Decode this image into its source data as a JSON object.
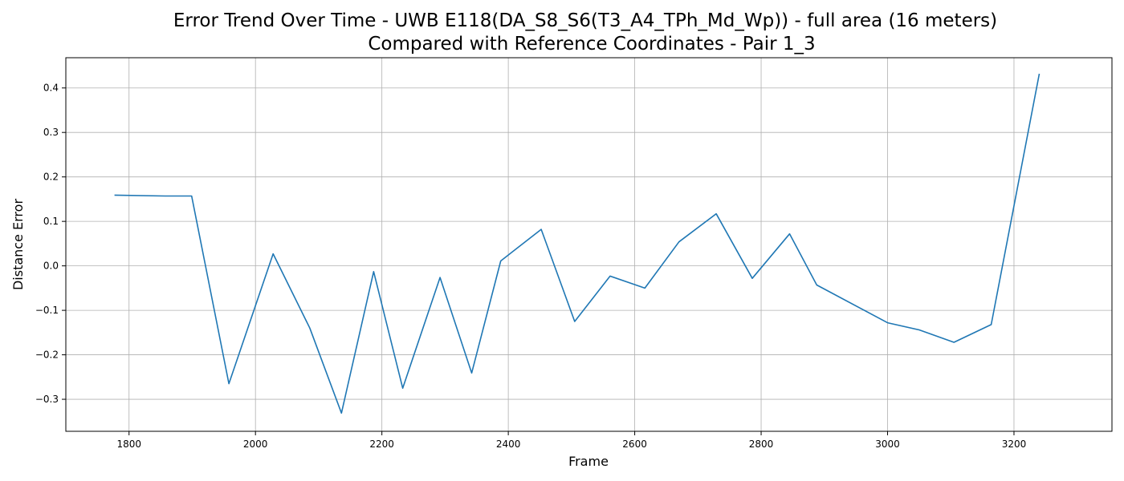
{
  "chart_data": {
    "type": "line",
    "title_line1": "Error Trend Over Time - UWB E118(DA_S8_S6(T3_A4_TPh_Md_Wp)) - full area (16 meters)",
    "title_line2": "Compared with Reference Coordinates - Pair 1_3",
    "xlabel": "Frame",
    "ylabel": "Distance Error",
    "xlim": [
      1700,
      3355
    ],
    "ylim": [
      -0.372,
      0.468
    ],
    "xticks": [
      1800,
      2000,
      2200,
      2400,
      2600,
      2800,
      3000,
      3200
    ],
    "yticks": [
      -0.3,
      -0.2,
      -0.1,
      0.0,
      0.1,
      0.2,
      0.3,
      0.4
    ],
    "xtick_labels": [
      "1800",
      "2000",
      "2200",
      "2400",
      "2600",
      "2800",
      "3000",
      "3200"
    ],
    "ytick_labels": [
      "−0.3",
      "−0.2",
      "−0.1",
      "0.0",
      "0.1",
      "0.2",
      "0.3",
      "0.4"
    ],
    "grid": true,
    "series": [
      {
        "color": "#1f77b4",
        "x": [
          1777,
          1857,
          1899,
          1958,
          2028,
          2086,
          2136,
          2187,
          2233,
          2292,
          2342,
          2388,
          2452,
          2505,
          2561,
          2616,
          2670,
          2729,
          2786,
          2845,
          2888,
          3000,
          3050,
          3105,
          3164,
          3240
        ],
        "y": [
          0.159,
          0.157,
          0.157,
          -0.265,
          0.027,
          -0.14,
          -0.331,
          -0.013,
          -0.275,
          -0.026,
          -0.241,
          0.011,
          0.082,
          -0.125,
          -0.023,
          -0.05,
          0.054,
          0.117,
          -0.028,
          0.072,
          -0.043,
          -0.128,
          -0.144,
          -0.172,
          -0.132,
          0.432
        ]
      }
    ]
  }
}
